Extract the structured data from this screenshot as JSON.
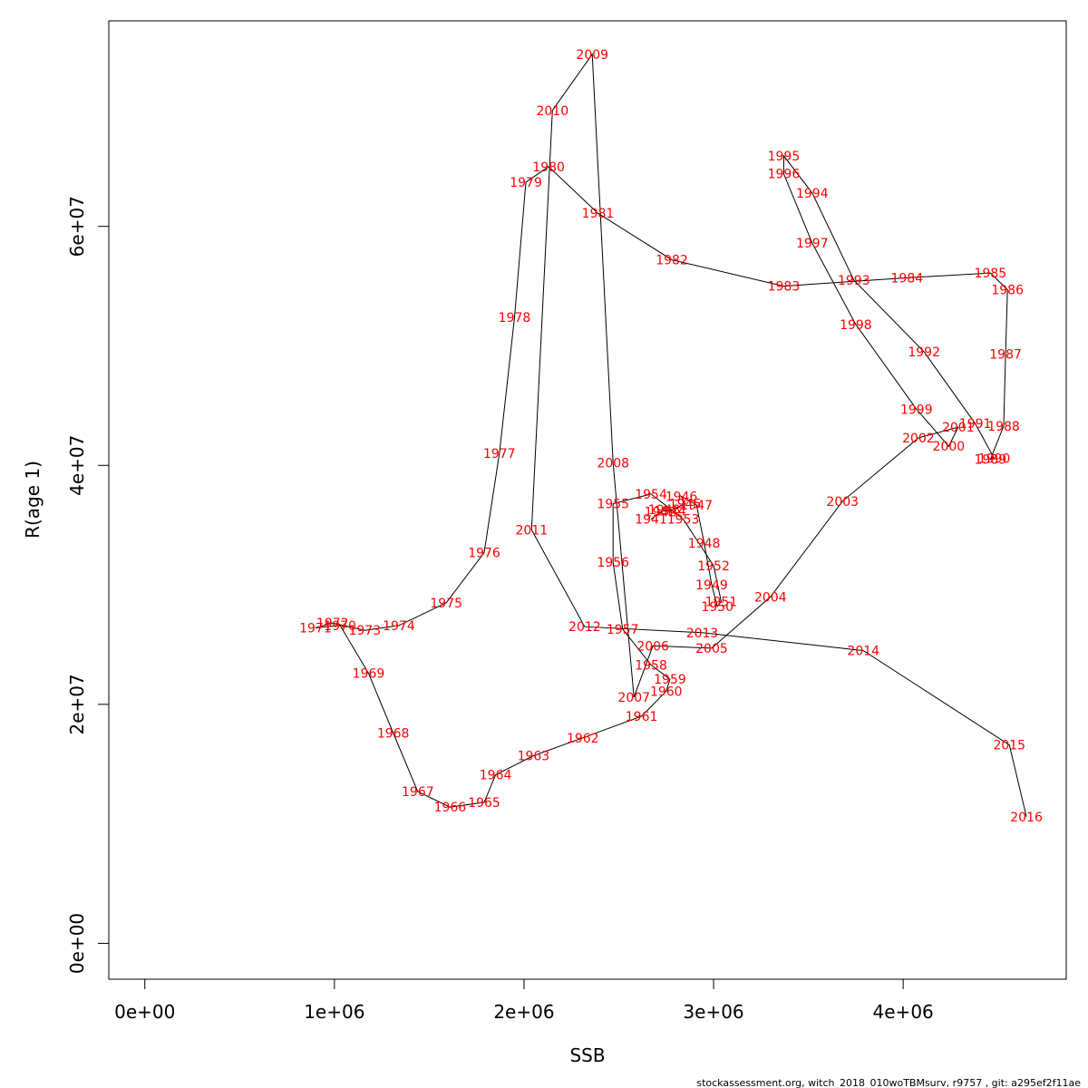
{
  "chart_data": {
    "type": "line",
    "xlabel": "SSB",
    "ylabel": "R(age 1)",
    "xlim": [
      -190000,
      4860000
    ],
    "ylim": [
      -3000000,
      77200000
    ],
    "x_ticks": [
      0,
      1000000,
      2000000,
      3000000,
      4000000
    ],
    "x_tick_labels": [
      "0e+00",
      "1e+06",
      "2e+06",
      "3e+06",
      "4e+06"
    ],
    "y_ticks": [
      0,
      20000000,
      40000000,
      60000000
    ],
    "y_tick_labels": [
      "0e+00",
      "2e+07",
      "4e+07",
      "6e+07"
    ],
    "line_color": "#000000",
    "label_color": "#ff0000",
    "points": [
      {
        "year": "1941",
        "ssb": 2670000,
        "rec": 35500000
      },
      {
        "year": "1942",
        "ssb": 2720000,
        "rec": 36100000
      },
      {
        "year": "1943",
        "ssb": 2740000,
        "rec": 36300000
      },
      {
        "year": "1944",
        "ssb": 2770000,
        "rec": 36200000
      },
      {
        "year": "1945",
        "ssb": 2850000,
        "rec": 36800000
      },
      {
        "year": "1946",
        "ssb": 2830000,
        "rec": 37400000
      },
      {
        "year": "1947",
        "ssb": 2910000,
        "rec": 36700000
      },
      {
        "year": "1948",
        "ssb": 2950000,
        "rec": 33500000
      },
      {
        "year": "1949",
        "ssb": 2990000,
        "rec": 30000000
      },
      {
        "year": "1950",
        "ssb": 3020000,
        "rec": 28200000
      },
      {
        "year": "1951",
        "ssb": 3040000,
        "rec": 28600000
      },
      {
        "year": "1952",
        "ssb": 3000000,
        "rec": 31600000
      },
      {
        "year": "1953",
        "ssb": 2840000,
        "rec": 35500000
      },
      {
        "year": "1954",
        "ssb": 2670000,
        "rec": 37600000
      },
      {
        "year": "1955",
        "ssb": 2470000,
        "rec": 36800000
      },
      {
        "year": "1956",
        "ssb": 2470000,
        "rec": 31900000
      },
      {
        "year": "1957",
        "ssb": 2520000,
        "rec": 26300000
      },
      {
        "year": "1958",
        "ssb": 2670000,
        "rec": 23300000
      },
      {
        "year": "1959",
        "ssb": 2770000,
        "rec": 22100000
      },
      {
        "year": "1960",
        "ssb": 2750000,
        "rec": 21100000
      },
      {
        "year": "1961",
        "ssb": 2620000,
        "rec": 19000000
      },
      {
        "year": "1962",
        "ssb": 2310000,
        "rec": 17200000
      },
      {
        "year": "1963",
        "ssb": 2050000,
        "rec": 15700000
      },
      {
        "year": "1964",
        "ssb": 1850000,
        "rec": 14100000
      },
      {
        "year": "1965",
        "ssb": 1790000,
        "rec": 11800000
      },
      {
        "year": "1966",
        "ssb": 1610000,
        "rec": 11400000
      },
      {
        "year": "1967",
        "ssb": 1440000,
        "rec": 12700000
      },
      {
        "year": "1968",
        "ssb": 1310000,
        "rec": 17600000
      },
      {
        "year": "1969",
        "ssb": 1180000,
        "rec": 22600000
      },
      {
        "year": "1970",
        "ssb": 1030000,
        "rec": 26600000
      },
      {
        "year": "1971",
        "ssb": 900000,
        "rec": 26400000
      },
      {
        "year": "1972",
        "ssb": 990000,
        "rec": 26800000
      },
      {
        "year": "1973",
        "ssb": 1160000,
        "rec": 26200000
      },
      {
        "year": "1974",
        "ssb": 1340000,
        "rec": 26600000
      },
      {
        "year": "1975",
        "ssb": 1590000,
        "rec": 28500000
      },
      {
        "year": "1976",
        "ssb": 1790000,
        "rec": 32700000
      },
      {
        "year": "1977",
        "ssb": 1870000,
        "rec": 41000000
      },
      {
        "year": "1978",
        "ssb": 1950000,
        "rec": 52400000
      },
      {
        "year": "1979",
        "ssb": 2010000,
        "rec": 63700000
      },
      {
        "year": "1980",
        "ssb": 2130000,
        "rec": 65000000
      },
      {
        "year": "1981",
        "ssb": 2390000,
        "rec": 61100000
      },
      {
        "year": "1982",
        "ssb": 2780000,
        "rec": 57200000
      },
      {
        "year": "1983",
        "ssb": 3370000,
        "rec": 55000000
      },
      {
        "year": "1984",
        "ssb": 4020000,
        "rec": 55700000
      },
      {
        "year": "1985",
        "ssb": 4460000,
        "rec": 56100000
      },
      {
        "year": "1986",
        "ssb": 4550000,
        "rec": 54700000
      },
      {
        "year": "1987",
        "ssb": 4540000,
        "rec": 49300000
      },
      {
        "year": "1988",
        "ssb": 4530000,
        "rec": 43300000
      },
      {
        "year": "1989",
        "ssb": 4460000,
        "rec": 40500000
      },
      {
        "year": "1990",
        "ssb": 4480000,
        "rec": 40600000
      },
      {
        "year": "1991",
        "ssb": 4380000,
        "rec": 43500000
      },
      {
        "year": "1992",
        "ssb": 4110000,
        "rec": 49500000
      },
      {
        "year": "1993",
        "ssb": 3740000,
        "rec": 55500000
      },
      {
        "year": "1994",
        "ssb": 3520000,
        "rec": 62800000
      },
      {
        "year": "1995",
        "ssb": 3370000,
        "rec": 65900000
      },
      {
        "year": "1996",
        "ssb": 3370000,
        "rec": 64400000
      },
      {
        "year": "1997",
        "ssb": 3520000,
        "rec": 58600000
      },
      {
        "year": "1998",
        "ssb": 3750000,
        "rec": 51800000
      },
      {
        "year": "1999",
        "ssb": 4070000,
        "rec": 44700000
      },
      {
        "year": "2000",
        "ssb": 4240000,
        "rec": 41600000
      },
      {
        "year": "2001",
        "ssb": 4290000,
        "rec": 43200000
      },
      {
        "year": "2002",
        "ssb": 4080000,
        "rec": 42300000
      },
      {
        "year": "2003",
        "ssb": 3680000,
        "rec": 37000000
      },
      {
        "year": "2004",
        "ssb": 3300000,
        "rec": 29000000
      },
      {
        "year": "2005",
        "ssb": 2990000,
        "rec": 24700000
      },
      {
        "year": "2006",
        "ssb": 2680000,
        "rec": 24900000
      },
      {
        "year": "2007",
        "ssb": 2580000,
        "rec": 20600000
      },
      {
        "year": "2008",
        "ssb": 2470000,
        "rec": 40200000
      },
      {
        "year": "2009",
        "ssb": 2360000,
        "rec": 74400000
      },
      {
        "year": "2010",
        "ssb": 2150000,
        "rec": 69700000
      },
      {
        "year": "2011",
        "ssb": 2040000,
        "rec": 34600000
      },
      {
        "year": "2012",
        "ssb": 2320000,
        "rec": 26500000
      },
      {
        "year": "2013",
        "ssb": 2940000,
        "rec": 26000000
      },
      {
        "year": "2014",
        "ssb": 3790000,
        "rec": 24500000
      },
      {
        "year": "2015",
        "ssb": 4560000,
        "rec": 16600000
      },
      {
        "year": "2016",
        "ssb": 4650000,
        "rec": 10600000
      }
    ]
  },
  "footer": {
    "text": "stockassessment.org, witch_2018_010woTBMsurv, r9757 , git: a295ef2f11ae"
  }
}
